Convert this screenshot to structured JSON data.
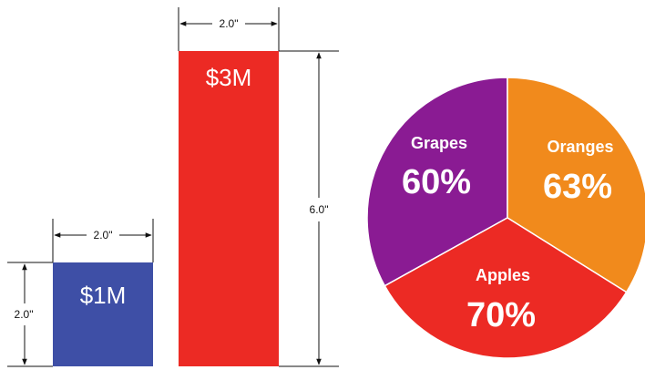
{
  "colors": {
    "bar_small": "#3e4fa6",
    "bar_large": "#ec2a24",
    "grapes": "#8a1b93",
    "oranges": "#f18a1c",
    "apples": "#ec2a24"
  },
  "chart_data": [
    {
      "type": "bar",
      "categories": [
        "$1M",
        "$3M"
      ],
      "values": [
        1,
        3
      ],
      "widths_in": [
        2.0,
        2.0
      ],
      "heights_in": [
        2.0,
        6.0
      ],
      "dimension_labels": {
        "small_width": "2.0\"",
        "small_height": "2.0\"",
        "large_width": "2.0\"",
        "large_height": "6.0\""
      }
    },
    {
      "type": "pie",
      "slices": [
        {
          "name": "Grapes",
          "label": "60%",
          "value": 60
        },
        {
          "name": "Oranges",
          "label": "63%",
          "value": 63
        },
        {
          "name": "Apples",
          "label": "70%",
          "value": 70
        }
      ]
    }
  ]
}
